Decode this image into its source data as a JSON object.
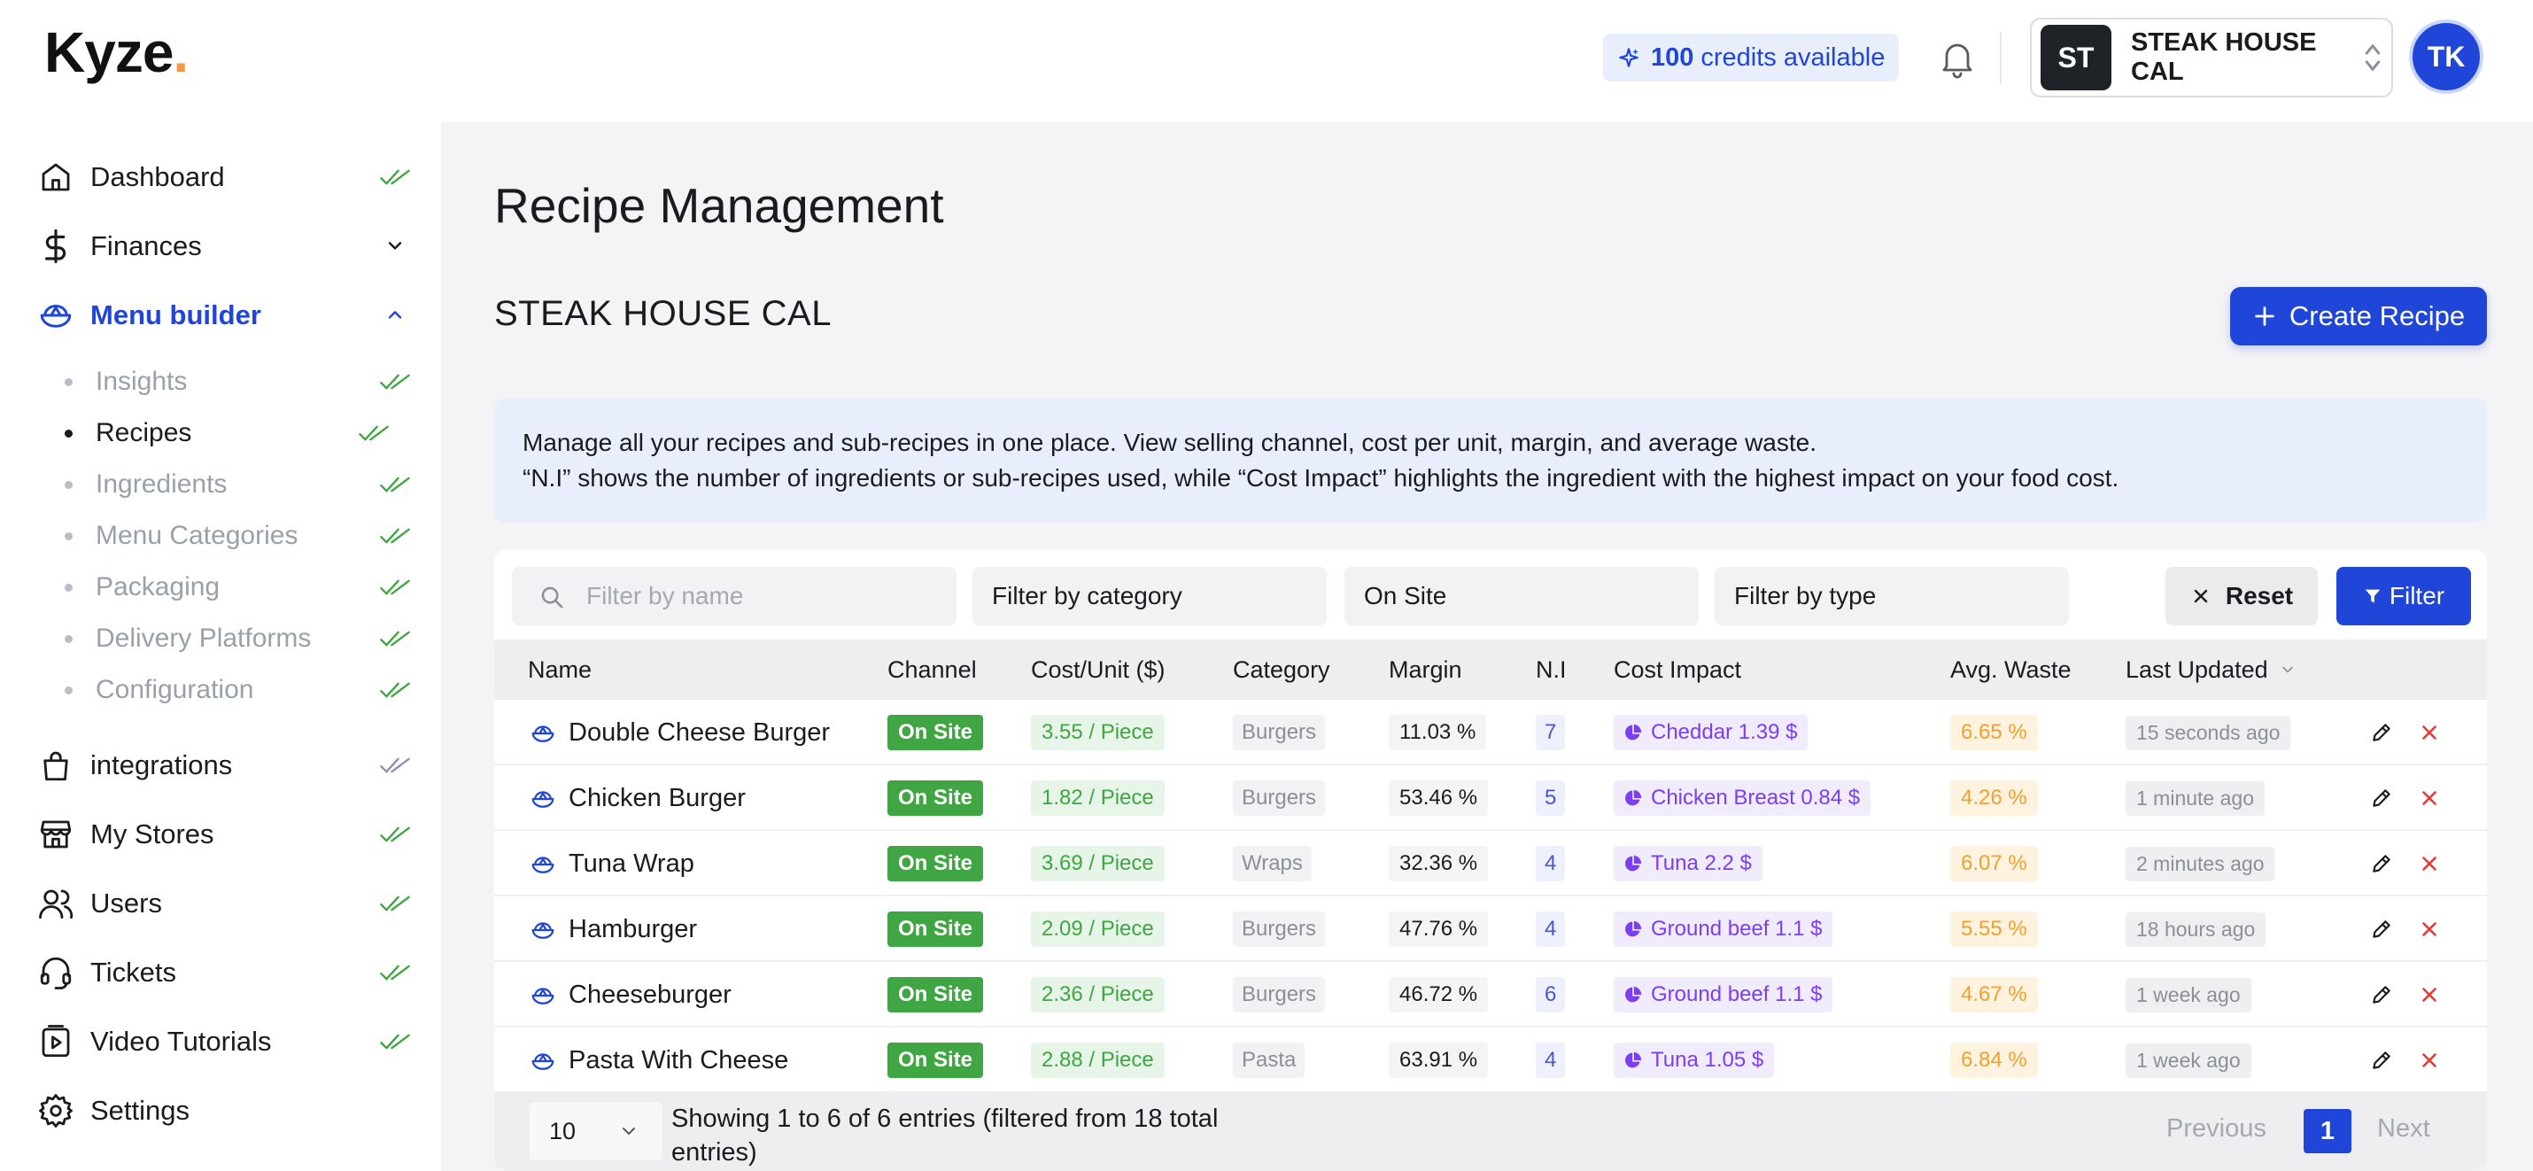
{
  "brand": {
    "logo_text": "Kyze",
    "logo_dot": "."
  },
  "header": {
    "credits_count": "100",
    "credits_label": "credits available",
    "store_initials": "ST",
    "store_name": "STEAK HOUSE CAL",
    "user_initials": "TK"
  },
  "sidebar": {
    "items": [
      {
        "label": "Dashboard",
        "icon": "home-icon"
      },
      {
        "label": "Finances",
        "icon": "dollar-icon"
      },
      {
        "label": "Menu builder",
        "icon": "bowl-icon"
      },
      {
        "label": "integrations",
        "icon": "bag-icon"
      },
      {
        "label": "My Stores",
        "icon": "store-icon"
      },
      {
        "label": "Users",
        "icon": "users-icon"
      },
      {
        "label": "Tickets",
        "icon": "headset-icon"
      },
      {
        "label": "Video Tutorials",
        "icon": "video-icon"
      },
      {
        "label": "Settings",
        "icon": "gear-icon"
      }
    ],
    "subitems": [
      {
        "label": "Insights"
      },
      {
        "label": "Recipes"
      },
      {
        "label": "Ingredients"
      },
      {
        "label": "Menu Categories"
      },
      {
        "label": "Packaging"
      },
      {
        "label": "Delivery Platforms"
      },
      {
        "label": "Configuration"
      }
    ]
  },
  "main": {
    "page_title": "Recipe Management",
    "store_title": "STEAK HOUSE CAL",
    "create_label": "Create Recipe",
    "info_line1": "Manage all your recipes and sub-recipes in one place. View selling channel, cost per unit, margin, and average waste.",
    "info_line2": "“N.I” shows the number of ingredients or sub-recipes used, while “Cost Impact” highlights the ingredient with the highest impact on your food cost."
  },
  "filters": {
    "name_placeholder": "Filter by name",
    "category_label": "Filter by category",
    "channel_value": "On Site",
    "type_label": "Filter by type",
    "reset_label": "Reset",
    "filter_label": "Filter"
  },
  "table": {
    "headers": [
      "Name",
      "Channel",
      "Cost/Unit ($)",
      "Category",
      "Margin",
      "N.I",
      "Cost Impact",
      "Avg. Waste",
      "Last Updated"
    ],
    "rows": [
      {
        "name": "Double Cheese Burger",
        "channel": "On Site",
        "cost": "3.55 / Piece",
        "category": "Burgers",
        "margin": "11.03 %",
        "ni": "7",
        "impact": "Cheddar 1.39 $",
        "waste": "6.65 %",
        "updated": "15 seconds ago"
      },
      {
        "name": "Chicken Burger",
        "channel": "On Site",
        "cost": "1.82 / Piece",
        "category": "Burgers",
        "margin": "53.46 %",
        "ni": "5",
        "impact": "Chicken Breast 0.84 $",
        "waste": "4.26 %",
        "updated": "1 minute ago"
      },
      {
        "name": "Tuna Wrap",
        "channel": "On Site",
        "cost": "3.69 / Piece",
        "category": "Wraps",
        "margin": "32.36 %",
        "ni": "4",
        "impact": "Tuna 2.2 $",
        "waste": "6.07 %",
        "updated": "2 minutes ago"
      },
      {
        "name": "Hamburger",
        "channel": "On Site",
        "cost": "2.09 / Piece",
        "category": "Burgers",
        "margin": "47.76 %",
        "ni": "4",
        "impact": "Ground beef 1.1 $",
        "waste": "5.55 %",
        "updated": "18 hours ago"
      },
      {
        "name": "Cheeseburger",
        "channel": "On Site",
        "cost": "2.36 / Piece",
        "category": "Burgers",
        "margin": "46.72 %",
        "ni": "6",
        "impact": "Ground beef 1.1 $",
        "waste": "4.67 %",
        "updated": "1 week ago"
      },
      {
        "name": "Pasta With Cheese",
        "channel": "On Site",
        "cost": "2.88 / Piece",
        "category": "Pasta",
        "margin": "63.91 %",
        "ni": "4",
        "impact": "Tuna 1.05 $",
        "waste": "6.84 %",
        "updated": "1 week ago"
      }
    ]
  },
  "pagination": {
    "page_size": "10",
    "showing_text": "Showing 1 to 6 of 6 entries (filtered from 18 total entries)",
    "previous_label": "Previous",
    "current_page": "1",
    "next_label": "Next"
  },
  "colors": {
    "accent": "#1f46d8",
    "success": "#3fa643",
    "impact": "#7b3ff2",
    "waste": "#f0a030",
    "delete": "#e53935"
  }
}
